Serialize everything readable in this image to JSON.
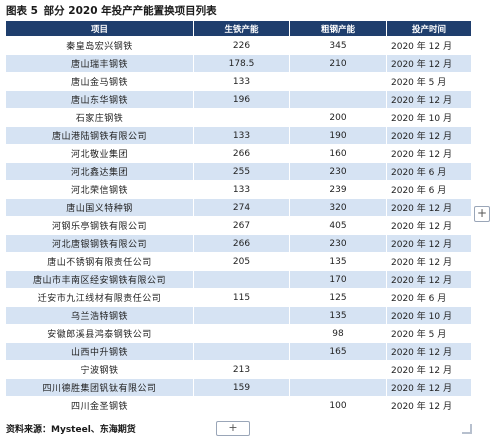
{
  "title": {
    "prefix": "图表 5",
    "text": "部分 2020 年投产产能置换项目列表"
  },
  "table": {
    "headers": [
      "项目",
      "生铁产能",
      "粗钢产能",
      "投产时间"
    ],
    "rows": [
      {
        "name": "秦皇岛宏兴钢铁",
        "iron": "226",
        "steel": "345",
        "date": "2020 年 12 月"
      },
      {
        "name": "唐山瑞丰钢铁",
        "iron": "178.5",
        "steel": "210",
        "date": "2020 年 12 月"
      },
      {
        "name": "唐山金马钢铁",
        "iron": "133",
        "steel": "",
        "date": "2020 年 5 月"
      },
      {
        "name": "唐山东华钢铁",
        "iron": "196",
        "steel": "",
        "date": "2020 年 12 月"
      },
      {
        "name": "石家庄钢铁",
        "iron": "",
        "steel": "200",
        "date": "2020 年 10 月"
      },
      {
        "name": "唐山港陆钢铁有限公司",
        "iron": "133",
        "steel": "190",
        "date": "2020 年 12 月"
      },
      {
        "name": "河北敬业集团",
        "iron": "266",
        "steel": "160",
        "date": "2020 年 12 月"
      },
      {
        "name": "河北鑫达集团",
        "iron": "255",
        "steel": "230",
        "date": "2020 年 6 月"
      },
      {
        "name": "河北荣信钢铁",
        "iron": "133",
        "steel": "239",
        "date": "2020 年 6 月"
      },
      {
        "name": "唐山国义特种钢",
        "iron": "274",
        "steel": "320",
        "date": "2020 年 12 月"
      },
      {
        "name": "河钢乐亭钢铁有限公司",
        "iron": "267",
        "steel": "405",
        "date": "2020 年 12 月"
      },
      {
        "name": "河北唐银钢铁有限公司",
        "iron": "266",
        "steel": "230",
        "date": "2020 年 12 月"
      },
      {
        "name": "唐山不锈钢有限责任公司",
        "iron": "205",
        "steel": "135",
        "date": "2020 年 12 月"
      },
      {
        "name": "唐山市丰南区经安钢铁有限公司",
        "iron": "",
        "steel": "170",
        "date": "2020 年 12 月"
      },
      {
        "name": "迁安市九江线材有限责任公司",
        "iron": "115",
        "steel": "125",
        "date": "2020 年 6 月"
      },
      {
        "name": "乌兰浩特钢铁",
        "iron": "",
        "steel": "135",
        "date": "2020 年 10 月"
      },
      {
        "name": "安徽郎溪县鸿泰钢铁公司",
        "iron": "",
        "steel": "98",
        "date": "2020 年 5 月"
      },
      {
        "name": "山西中升钢铁",
        "iron": "",
        "steel": "165",
        "date": "2020 年 12 月"
      },
      {
        "name": "宁波钢铁",
        "iron": "213",
        "steel": "",
        "date": "2020 年 12 月"
      },
      {
        "name": "四川德胜集团钒钛有限公司",
        "iron": "159",
        "steel": "",
        "date": "2020 年 12 月"
      },
      {
        "name": "四川金圣钢铁",
        "iron": "",
        "steel": "100",
        "date": "2020 年 12 月"
      }
    ]
  },
  "source": "资料来源：Mysteel、东海期货",
  "controls": {
    "add_symbol": "+"
  },
  "colors": {
    "header_bg": "#1f3e6d",
    "alt_row_bg": "#d6e3f3"
  }
}
